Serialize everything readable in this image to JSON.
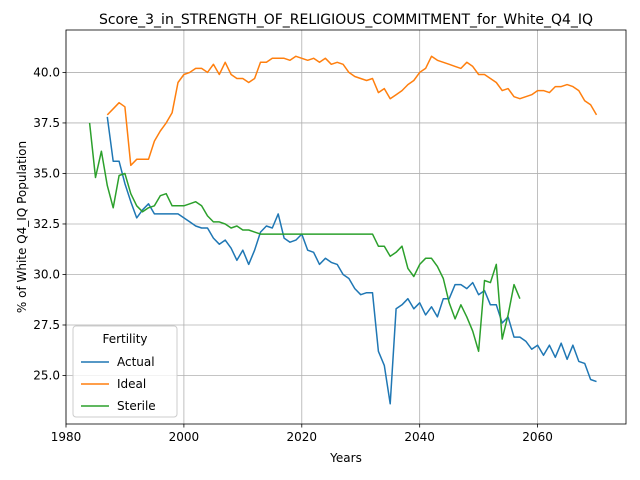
{
  "chart_data": {
    "type": "line",
    "title": "Score_3_in_STRENGTH_OF_RELIGIOUS_COMMITMENT_for_White_Q4_IQ",
    "xlabel": "Years",
    "ylabel": "% of White Q4_IQ Population",
    "xlim": [
      1980,
      2075
    ],
    "ylim": [
      22.6,
      42.1
    ],
    "xticks": [
      1980,
      2000,
      2020,
      2040,
      2060
    ],
    "yticks": [
      25.0,
      27.5,
      30.0,
      32.5,
      35.0,
      37.5,
      40.0
    ],
    "xtick_labels": [
      "1980",
      "2000",
      "2020",
      "2040",
      "2060"
    ],
    "ytick_labels": [
      "25.0",
      "27.5",
      "30.0",
      "32.5",
      "35.0",
      "37.5",
      "40.0"
    ],
    "grid": true,
    "legend": {
      "title": "Fertility",
      "placement": "lower-left"
    },
    "series": [
      {
        "name": "Actual",
        "color": "#1f77b4",
        "x": [
          1987,
          1988,
          1989,
          1990,
          1991,
          1992,
          1993,
          1994,
          1995,
          1996,
          1997,
          1998,
          1999,
          2000,
          2001,
          2002,
          2003,
          2004,
          2005,
          2006,
          2007,
          2008,
          2009,
          2010,
          2011,
          2012,
          2013,
          2014,
          2015,
          2016,
          2017,
          2018,
          2019,
          2020,
          2021,
          2022,
          2023,
          2024,
          2025,
          2026,
          2027,
          2028,
          2029,
          2030,
          2031,
          2032,
          2033,
          2034,
          2035,
          2036,
          2037,
          2038,
          2039,
          2040,
          2041,
          2042,
          2043,
          2044,
          2045,
          2046,
          2047,
          2048,
          2049,
          2050,
          2051,
          2052,
          2053,
          2054,
          2055,
          2056,
          2057,
          2058,
          2059,
          2060,
          2061,
          2062,
          2063,
          2064,
          2065,
          2066,
          2067,
          2068,
          2069,
          2070
        ],
        "values": [
          37.8,
          35.6,
          35.6,
          34.5,
          33.6,
          32.8,
          33.2,
          33.5,
          33.0,
          33.0,
          33.0,
          33.0,
          33.0,
          32.8,
          32.6,
          32.4,
          32.3,
          32.3,
          31.8,
          31.5,
          31.7,
          31.3,
          30.7,
          31.2,
          30.5,
          31.2,
          32.1,
          32.4,
          32.3,
          33.0,
          31.8,
          31.6,
          31.7,
          32.0,
          31.2,
          31.1,
          30.5,
          30.8,
          30.6,
          30.5,
          30.0,
          29.8,
          29.3,
          29.0,
          29.1,
          29.1,
          26.2,
          25.5,
          23.6,
          28.3,
          28.5,
          28.8,
          28.3,
          28.6,
          28.0,
          28.4,
          27.9,
          28.8,
          28.8,
          29.5,
          29.5,
          29.3,
          29.6,
          29.0,
          29.2,
          28.5,
          28.5,
          27.6,
          27.9,
          26.9,
          26.9,
          26.7,
          26.3,
          26.5,
          26.0,
          26.5,
          25.9,
          26.6,
          25.8,
          26.5,
          25.7,
          25.6,
          24.8,
          24.7
        ]
      },
      {
        "name": "Ideal",
        "color": "#ff7f0e",
        "x": [
          1987,
          1988,
          1989,
          1990,
          1991,
          1992,
          1993,
          1994,
          1995,
          1996,
          1997,
          1998,
          1999,
          2000,
          2001,
          2002,
          2003,
          2004,
          2005,
          2006,
          2007,
          2008,
          2009,
          2010,
          2011,
          2012,
          2013,
          2014,
          2015,
          2016,
          2017,
          2018,
          2019,
          2020,
          2021,
          2022,
          2023,
          2024,
          2025,
          2026,
          2027,
          2028,
          2029,
          2030,
          2031,
          2032,
          2033,
          2034,
          2035,
          2036,
          2037,
          2038,
          2039,
          2040,
          2041,
          2042,
          2043,
          2044,
          2045,
          2046,
          2047,
          2048,
          2049,
          2050,
          2051,
          2052,
          2053,
          2054,
          2055,
          2056,
          2057,
          2058,
          2059,
          2060,
          2061,
          2062,
          2063,
          2064,
          2065,
          2066,
          2067,
          2068,
          2069,
          2070
        ],
        "values": [
          37.9,
          38.2,
          38.5,
          38.3,
          35.4,
          35.7,
          35.7,
          35.7,
          36.6,
          37.1,
          37.5,
          38.0,
          39.5,
          39.9,
          40.0,
          40.2,
          40.2,
          40.0,
          40.4,
          39.9,
          40.5,
          39.9,
          39.7,
          39.7,
          39.5,
          39.7,
          40.5,
          40.5,
          40.7,
          40.7,
          40.7,
          40.6,
          40.8,
          40.7,
          40.6,
          40.7,
          40.5,
          40.7,
          40.4,
          40.5,
          40.4,
          40.0,
          39.8,
          39.7,
          39.6,
          39.7,
          39.0,
          39.2,
          38.7,
          38.9,
          39.1,
          39.4,
          39.6,
          40.0,
          40.2,
          40.8,
          40.6,
          40.5,
          40.4,
          40.3,
          40.2,
          40.5,
          40.3,
          39.9,
          39.9,
          39.7,
          39.5,
          39.1,
          39.2,
          38.8,
          38.7,
          38.8,
          38.9,
          39.1,
          39.1,
          39.0,
          39.3,
          39.3,
          39.4,
          39.3,
          39.1,
          38.6,
          38.4,
          37.9
        ]
      },
      {
        "name": "Sterile",
        "color": "#2ca02c",
        "x": [
          1984,
          1985,
          1986,
          1987,
          1988,
          1989,
          1990,
          1991,
          1992,
          1993,
          1994,
          1995,
          1996,
          1997,
          1998,
          1999,
          2000,
          2001,
          2002,
          2003,
          2004,
          2005,
          2006,
          2007,
          2008,
          2009,
          2010,
          2011,
          2012,
          2013,
          2014,
          2015,
          2016,
          2017,
          2018,
          2019,
          2020,
          2021,
          2022,
          2023,
          2024,
          2025,
          2026,
          2027,
          2028,
          2029,
          2030,
          2031,
          2032,
          2033,
          2034,
          2035,
          2036,
          2037,
          2038,
          2039,
          2040,
          2041,
          2042,
          2043,
          2044,
          2045,
          2046,
          2047,
          2048,
          2049,
          2050,
          2051,
          2052,
          2053,
          2054,
          2055,
          2056,
          2057
        ],
        "values": [
          37.5,
          34.8,
          36.1,
          34.4,
          33.3,
          34.9,
          35.0,
          34.0,
          33.4,
          33.1,
          33.3,
          33.4,
          33.9,
          34.0,
          33.4,
          33.4,
          33.4,
          33.5,
          33.6,
          33.4,
          32.9,
          32.6,
          32.6,
          32.5,
          32.3,
          32.4,
          32.2,
          32.2,
          32.1,
          32.0,
          32.0,
          32.0,
          32.0,
          32.0,
          32.0,
          32.0,
          32.0,
          32.0,
          32.0,
          32.0,
          32.0,
          32.0,
          32.0,
          32.0,
          32.0,
          32.0,
          32.0,
          32.0,
          32.0,
          31.4,
          31.4,
          30.9,
          31.1,
          31.4,
          30.3,
          29.9,
          30.5,
          30.8,
          30.8,
          30.4,
          29.8,
          28.6,
          27.8,
          28.5,
          27.9,
          27.2,
          26.2,
          29.7,
          29.6,
          30.5,
          26.8,
          28.0,
          29.5,
          28.8
        ]
      }
    ]
  }
}
